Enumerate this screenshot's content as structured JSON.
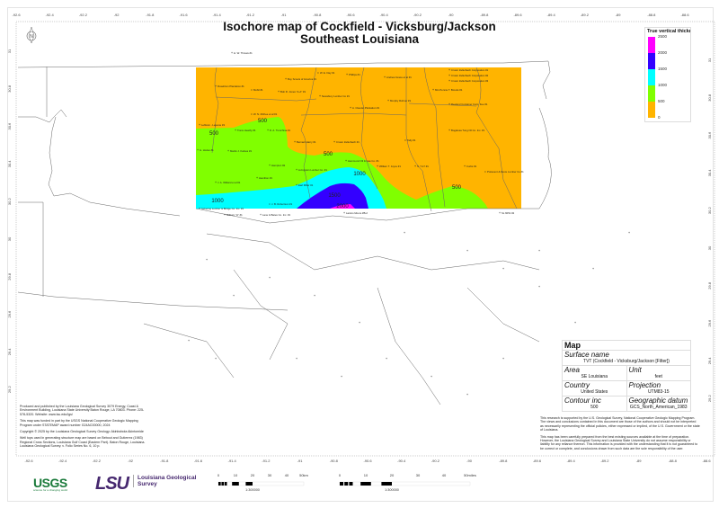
{
  "title": {
    "line1": "Isochore map of Cockfield - Vicksburg/Jackson",
    "line2": "Southeast Louisiana"
  },
  "longitude_ticks": [
    "-92.6",
    "-92.4",
    "-92.2",
    "-92",
    "-91.8",
    "-91.6",
    "-91.4",
    "-91.2",
    "-91",
    "-90.8",
    "-90.6",
    "-90.4",
    "-90.2",
    "-90",
    "-89.8",
    "-89.6",
    "-89.4",
    "-89.2",
    "-89",
    "-88.8",
    "-88.6"
  ],
  "latitude_ticks": [
    "31",
    "30.8",
    "30.6",
    "30.4",
    "30.2",
    "30",
    "29.8",
    "29.6",
    "29.4",
    "29.2"
  ],
  "north_arrow": {
    "label": "N",
    "icon": "north-arrow-icon"
  },
  "legend": {
    "title": "True vertical thickness",
    "levels": [
      "2500",
      "2000",
      "1500",
      "1000",
      "500",
      "0"
    ],
    "colors": [
      "#ff00ff",
      "#3300ff",
      "#00ffff",
      "#80ff00",
      "#ffb400"
    ]
  },
  "contour_labels": [
    "500",
    "500",
    "500",
    "500",
    "1000",
    "1000",
    "1500",
    "2000"
  ],
  "wells": [
    "H. W. Throws #1",
    "Boy Scouts of America #1",
    "W. E. Day #1",
    "Phillips #1",
    "Andrew Grace et al #1",
    "Crown Zellerbach Corporation #1",
    "Crown Zellerbach Corporation #2",
    "Crown Zellerbach Corporation #3",
    "Roseblum Plantation #1",
    "Mobil #1",
    "Bob R. Jones \"A-A\" #1",
    "Newsbury Lumber Co #1",
    "Mrs Pennie T. Brooks #1",
    "Murphy Rohner #1",
    "Reeland Container Corp. Fee #1",
    "A. Claudet Plantation #1",
    "W. N. McKee et al #1",
    "Leblanc - Lejeune #1",
    "Trans Heathy #1",
    "D. A. Trenchina #1",
    "Bogalusa Tung Oil Co. Inc. #1",
    "Bernard Harry #1",
    "Crown Zellerbach #1",
    "Tally #1",
    "G. Hodes #1",
    "Martin J. Kafous #1",
    "Hammond Oil & Gas Co. #1",
    "William T. Joyce #1",
    "S. T-17 #1",
    "Curtis #1",
    "Poitevent & Favre Lumber Co #1",
    "Hampton #2",
    "Livingston Lumber Co. #1",
    "Hamilton #1",
    "J. A. Williard et al #1",
    "Earl Miller #1",
    "Schering Lumber & Bridge Co. Inc. #1",
    "J. B. Robertson #1",
    "Milburn \"A\" #1",
    "Lane & Bates Co. Inc. #1",
    "Lazaro Moore #B-2",
    "SL 6051 #2"
  ],
  "info": {
    "heading": "Map",
    "surface_name_label": "Surface name",
    "surface_name": "TVT (Cockfield - Vicksburg/Jackson [Filter])",
    "area_label": "Area",
    "area": "SE Louisiana",
    "unit_label": "Unit",
    "unit": "feet",
    "country_label": "Country",
    "country": "United States",
    "projection_label": "Projection",
    "projection": "UTM83-15",
    "contour_label": "Contour inc",
    "contour": "500",
    "datum_label": "Geographic datum",
    "datum": "GCS_North_American_1983"
  },
  "notes_left": [
    "Produced and published by the Louisiana Geological Survey 3079 Energy, Coast & Environment Building, Louisiana State University Baton Rouge, LA 70803. Phone: 225-578-5320. Website: www.lsu.edu/lgs/",
    "This map was funded in part by the USGS National Cooperative Geologic Mapping Program under STATEMAP award number G24AC00000, 2024",
    "Copyright © 2025 by the Louisiana Geological Survey Geology: Akinbobola Akintomide",
    "Well tops used in generating structure map are based on Bebout and Gutierrez (1983) Regional Cross Sections, Louisiana Gulf Coast (Eastern Part). Baton Rouge, Louisiana. Louisiana Geological Survey. v. Folio Series No. 6, 10 p."
  ],
  "notes_right": [
    "This research is supported by the U.S. Geological Survey, National Cooperative Geologic Mapping Program. The views and conclusions contained in this document are those of the authors and should not be interpreted as necessarily representing the official policies, either expressed or implied, of the U.S. Government or the state of Louisiana.",
    "This map has been carefully prepared from the best existing sources available at the time of preparation. However, the Louisiana Geological Survey and Louisiana State University do not assume responsibility or liability for any reliance thereon. This information is provided with the understanding that it is not guaranteed to be correct or complete, and conclusions drawn from such data are the sole responsibility of the user."
  ],
  "logos": {
    "usgs": "USGS",
    "usgs_tagline": "science for a changing world",
    "lsu": "LSU",
    "lgs_line1": "Louisiana Geological",
    "lgs_line2": "Survey"
  },
  "scalebar_km": {
    "ticks": [
      "0",
      "10",
      "20",
      "30",
      "40",
      "50km"
    ],
    "ratio": "1:300000"
  },
  "scalebar_mi": {
    "ticks": [
      "0",
      "10",
      "20",
      "30",
      "40",
      "50miles"
    ],
    "ratio": "1:300000"
  }
}
